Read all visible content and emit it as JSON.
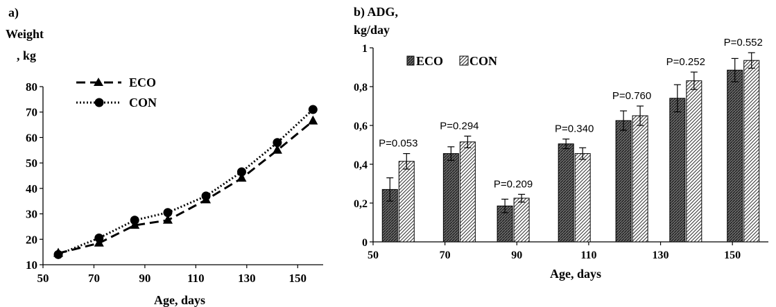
{
  "chart_data": [
    {
      "type": "line",
      "panel_label": "a)",
      "ylabel_line1": "Weight",
      "ylabel_line2": ", kg",
      "xlabel": "Age, days",
      "xlim": [
        50,
        160
      ],
      "ylim": [
        10,
        80
      ],
      "x_ticks": [
        "50",
        "70",
        "90",
        "110",
        "130",
        "150"
      ],
      "x_tick_values": [
        50,
        70,
        90,
        110,
        130,
        150
      ],
      "y_ticks": [
        "10",
        "20",
        "30",
        "40",
        "50",
        "60",
        "70",
        "80"
      ],
      "y_tick_values": [
        10,
        20,
        30,
        40,
        50,
        60,
        70,
        80
      ],
      "legend_position": "top-left",
      "series": [
        {
          "name": "ECO",
          "marker": "triangle",
          "line": "dashed",
          "x": [
            56,
            72,
            86,
            99,
            114,
            128,
            142,
            156
          ],
          "y": [
            14.5,
            18.5,
            25.5,
            27.5,
            35.5,
            44,
            55,
            66.5
          ]
        },
        {
          "name": "CON",
          "marker": "circle",
          "line": "dotted",
          "x": [
            56,
            72,
            86,
            99,
            114,
            128,
            142,
            156
          ],
          "y": [
            14,
            20.5,
            27.5,
            30.5,
            37,
            46.5,
            58,
            71
          ]
        }
      ]
    },
    {
      "type": "bar",
      "panel_label": "b) ADG,",
      "ylabel": "kg/day",
      "xlabel": "Age, days",
      "xlim": [
        50,
        160
      ],
      "ylim": [
        0,
        1
      ],
      "x_ticks": [
        "50",
        "70",
        "90",
        "110",
        "130",
        "150"
      ],
      "x_tick_values": [
        50,
        70,
        90,
        110,
        130,
        150
      ],
      "y_ticks": [
        "0",
        "0,2",
        "0,4",
        "0,6",
        "0,8",
        "1"
      ],
      "y_tick_values": [
        0,
        0.2,
        0.4,
        0.6,
        0.8,
        1.0
      ],
      "legend_position": "top-left",
      "categories": [
        57,
        74,
        89,
        106,
        122,
        137,
        153
      ],
      "series": [
        {
          "name": "ECO",
          "fill": "dense-hatch",
          "values": [
            0.27,
            0.455,
            0.185,
            0.505,
            0.625,
            0.74,
            0.885
          ],
          "errors": [
            0.06,
            0.035,
            0.035,
            0.025,
            0.05,
            0.07,
            0.06
          ]
        },
        {
          "name": "CON",
          "fill": "diagonal-hatch",
          "values": [
            0.415,
            0.515,
            0.225,
            0.455,
            0.65,
            0.83,
            0.935
          ],
          "errors": [
            0.04,
            0.03,
            0.02,
            0.03,
            0.05,
            0.045,
            0.04
          ]
        }
      ],
      "p_values": [
        "P=0.053",
        "P=0.294",
        "P=0.209",
        "P=0.340",
        "P=0.760",
        "P=0.252",
        "P=0.552"
      ]
    }
  ]
}
